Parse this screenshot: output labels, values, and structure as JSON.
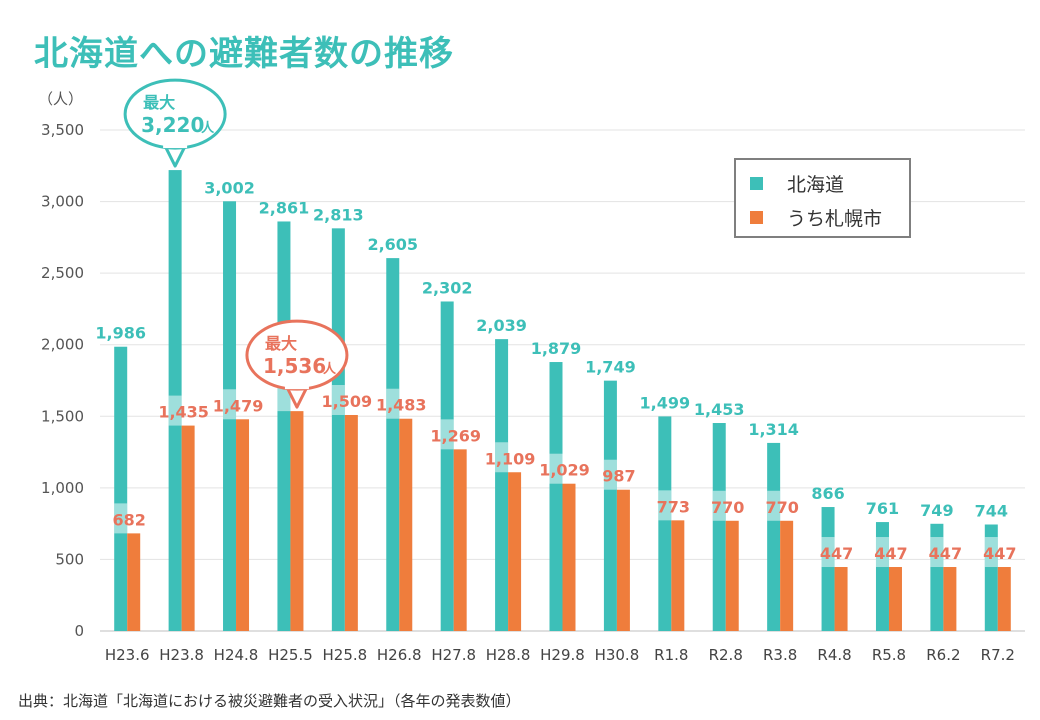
{
  "title": "北海道への避難者数の推移",
  "source": "出典：北海道「北海道における被災避難者の受入状況」（各年の発表数値）",
  "chart_data": {
    "type": "bar",
    "categories": [
      "H23.6",
      "H23.8",
      "H24.8",
      "H25.5",
      "H25.8",
      "H26.8",
      "H27.8",
      "H28.8",
      "H29.8",
      "H30.8",
      "R1.8",
      "R2.8",
      "R3.8",
      "R4.8",
      "R5.8",
      "R6.2",
      "R7.2"
    ],
    "series": [
      {
        "name": "北海道",
        "color": "#3dbfb8",
        "values": [
          1986,
          3220,
          3002,
          2861,
          2813,
          2605,
          2302,
          2039,
          1879,
          1749,
          1499,
          1453,
          1314,
          866,
          761,
          749,
          744
        ],
        "labels": [
          "1,986",
          "",
          "3,002",
          "2,861",
          "2,813",
          "2,605",
          "2,302",
          "2,039",
          "1,879",
          "1,749",
          "1,499",
          "1,453",
          "1,314",
          "866",
          "761",
          "749",
          "744"
        ]
      },
      {
        "name": "うち札幌市",
        "color": "#ef7d3c",
        "values": [
          682,
          1435,
          1479,
          1536,
          1509,
          1483,
          1269,
          1109,
          1029,
          987,
          773,
          770,
          770,
          447,
          447,
          447,
          447
        ],
        "labels": [
          "682",
          "1,435",
          "1,479",
          "",
          "1,509",
          "1,483",
          "1,269",
          "1,109",
          "1,029",
          "987",
          "773",
          "770",
          "770",
          "447",
          "447",
          "447",
          "447"
        ]
      }
    ],
    "ylim": [
      0,
      3500
    ],
    "yticks": [
      0,
      500,
      1000,
      1500,
      2000,
      2500,
      3000,
      3500
    ],
    "ytick_labels": [
      "0",
      "500",
      "1,000",
      "1,500",
      "2,000",
      "2,500",
      "3,000",
      "3,500"
    ],
    "ylabel": "（人）",
    "legend": {
      "position": "top-right",
      "entries": [
        "北海道",
        "うち札幌市"
      ]
    },
    "annotations": [
      {
        "series": 0,
        "category": "H23.8",
        "head": "最大",
        "value": "3,220",
        "unit": "人",
        "color": "#3dbfb8"
      },
      {
        "series": 1,
        "category": "H25.5",
        "head": "最大",
        "value": "1,536",
        "unit": "人",
        "color": "#e8735c"
      }
    ]
  }
}
